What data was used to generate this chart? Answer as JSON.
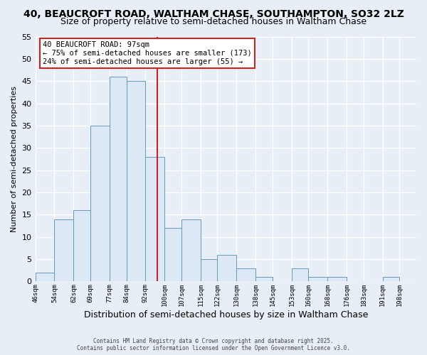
{
  "title1": "40, BEAUCROFT ROAD, WALTHAM CHASE, SOUTHAMPTON, SO32 2LZ",
  "title2": "Size of property relative to semi-detached houses in Waltham Chase",
  "xlabel": "Distribution of semi-detached houses by size in Waltham Chase",
  "ylabel": "Number of semi-detached properties",
  "bin_edges": [
    46,
    54,
    62,
    69,
    77,
    84,
    92,
    100,
    107,
    115,
    122,
    130,
    138,
    145,
    153,
    160,
    168,
    176,
    183,
    191,
    198,
    205
  ],
  "bar_heights": [
    2,
    14,
    16,
    35,
    46,
    45,
    28,
    12,
    14,
    5,
    6,
    3,
    1,
    0,
    3,
    1,
    1,
    0,
    0,
    1,
    0
  ],
  "bar_color": "#dce8f5",
  "bar_edge_color": "#6699bb",
  "property_value": 97,
  "vline_color": "#cc2222",
  "ylim": [
    0,
    55
  ],
  "yticks": [
    0,
    5,
    10,
    15,
    20,
    25,
    30,
    35,
    40,
    45,
    50,
    55
  ],
  "annotation_title": "40 BEAUCROFT ROAD: 97sqm",
  "annotation_line1": "← 75% of semi-detached houses are smaller (173)",
  "annotation_line2": "24% of semi-detached houses are larger (55) →",
  "annotation_box_color": "#ffffff",
  "annotation_edge_color": "#cc2222",
  "background_color": "#e8eef5",
  "plot_bg_color": "#e8eef5",
  "footer1": "Contains HM Land Registry data © Crown copyright and database right 2025.",
  "footer2": "Contains public sector information licensed under the Open Government Licence v3.0.",
  "tick_labels": [
    "46sqm",
    "54sqm",
    "62sqm",
    "69sqm",
    "77sqm",
    "84sqm",
    "92sqm",
    "100sqm",
    "107sqm",
    "115sqm",
    "122sqm",
    "130sqm",
    "138sqm",
    "145sqm",
    "153sqm",
    "160sqm",
    "168sqm",
    "176sqm",
    "183sqm",
    "191sqm",
    "198sqm"
  ],
  "grid_color": "#ffffff",
  "title1_fontsize": 10,
  "title2_fontsize": 9,
  "xlabel_fontsize": 9,
  "ylabel_fontsize": 8
}
